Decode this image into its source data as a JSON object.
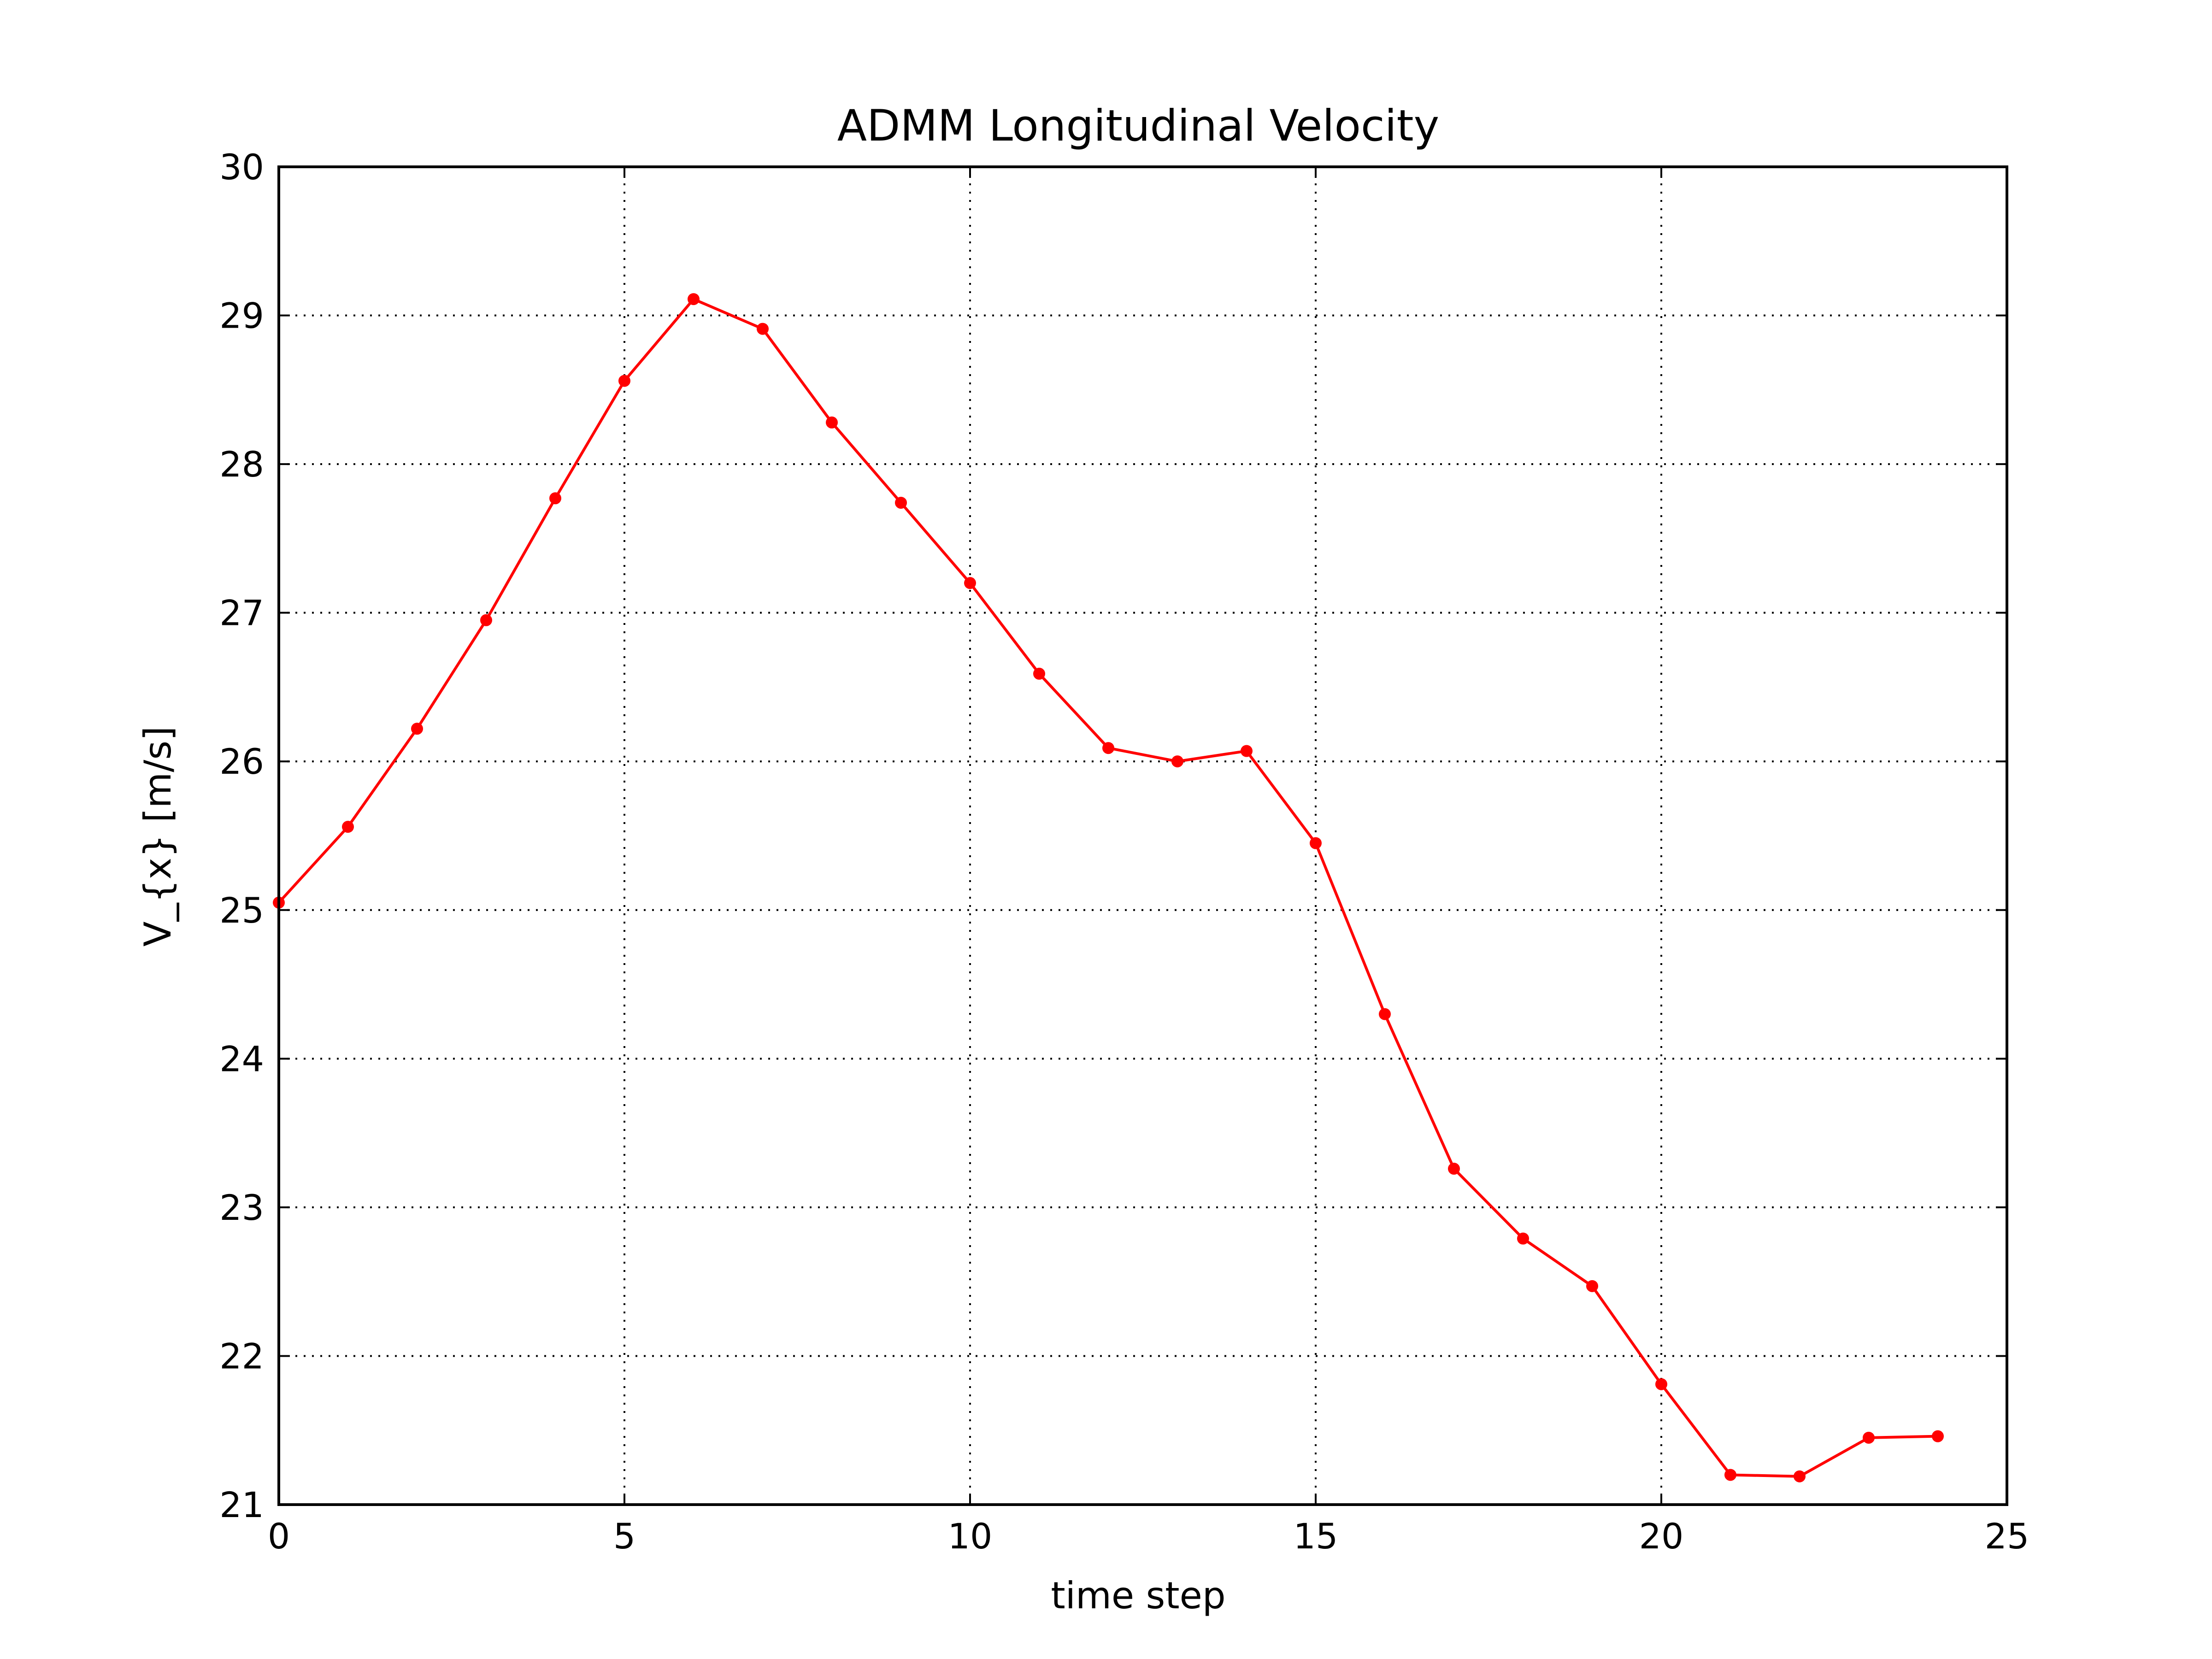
{
  "chart_data": {
    "type": "line",
    "title": "ADMM Longitudinal Velocity",
    "xlabel": "time step",
    "ylabel": "V_{x} [m/s]",
    "xlim": [
      0,
      25
    ],
    "ylim": [
      21,
      30
    ],
    "x_ticks": [
      "0",
      "5",
      "10",
      "15",
      "20",
      "25"
    ],
    "y_ticks": [
      "21",
      "22",
      "23",
      "24",
      "25",
      "26",
      "27",
      "28",
      "29",
      "30"
    ],
    "grid": true,
    "series": [
      {
        "color": "#ff0000",
        "marker": "circle",
        "x": [
          0,
          1,
          2,
          3,
          4,
          5,
          6,
          7,
          8,
          9,
          10,
          11,
          12,
          13,
          14,
          15,
          16,
          17,
          18,
          19,
          20,
          21,
          22,
          23,
          24
        ],
        "values": [
          25.05,
          25.56,
          26.22,
          26.95,
          27.77,
          28.56,
          29.11,
          28.91,
          28.28,
          27.74,
          27.2,
          26.59,
          26.09,
          26.0,
          26.07,
          25.45,
          24.3,
          23.26,
          22.79,
          22.47,
          21.81,
          21.2,
          21.19,
          21.45,
          21.46
        ]
      }
    ]
  }
}
